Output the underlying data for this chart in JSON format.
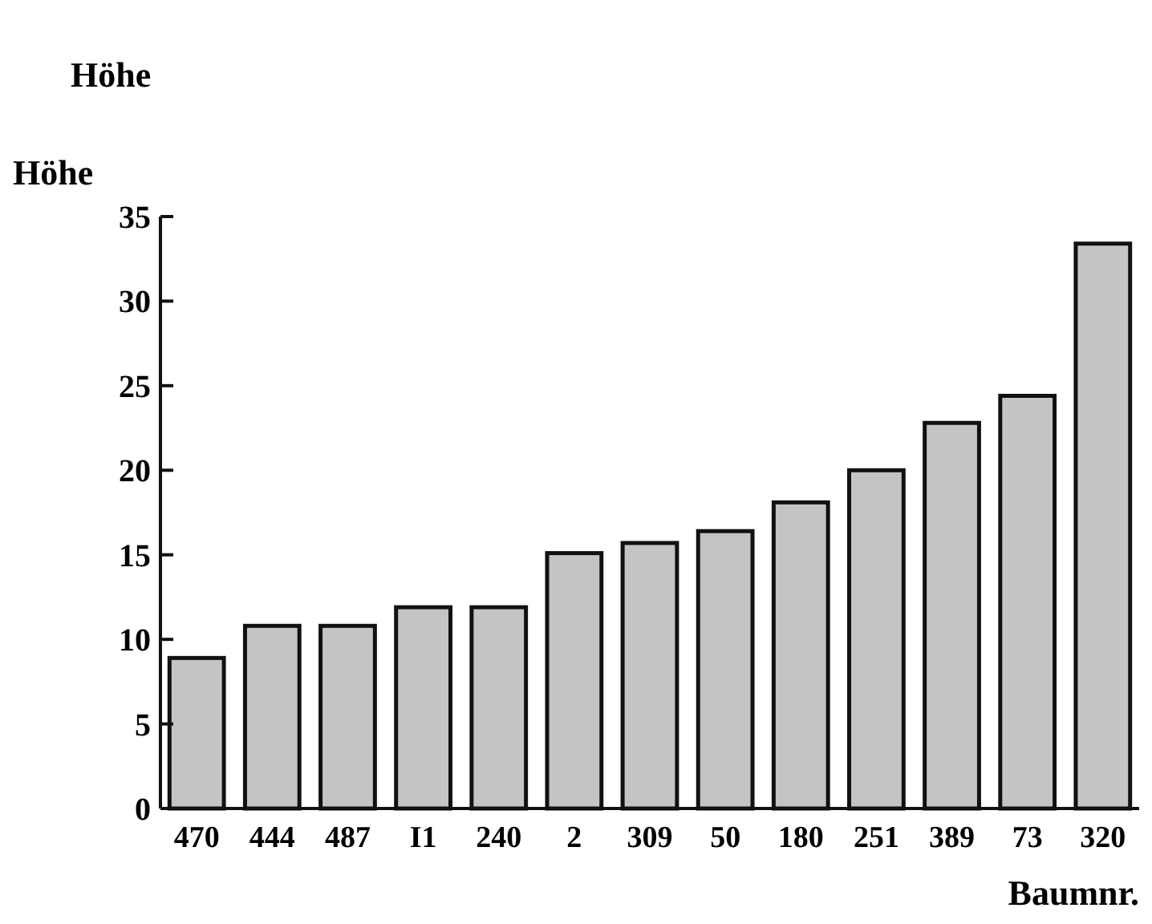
{
  "chart_data": {
    "type": "bar",
    "title": "Höhe",
    "ylabel": "Höhe",
    "xlabel": "Baumnr.",
    "categories": [
      "470",
      "444",
      "487",
      "I1",
      "240",
      "2",
      "309",
      "50",
      "180",
      "251",
      "389",
      "73",
      "320"
    ],
    "values": [
      8.9,
      10.8,
      10.8,
      11.9,
      11.9,
      15.1,
      15.7,
      16.4,
      18.1,
      20.0,
      22.8,
      24.4,
      33.4
    ],
    "color": "#c4c4c4",
    "ylim": [
      0,
      35
    ],
    "yticks": [
      0,
      5,
      10,
      15,
      20,
      25,
      30,
      35
    ],
    "grid": false
  }
}
